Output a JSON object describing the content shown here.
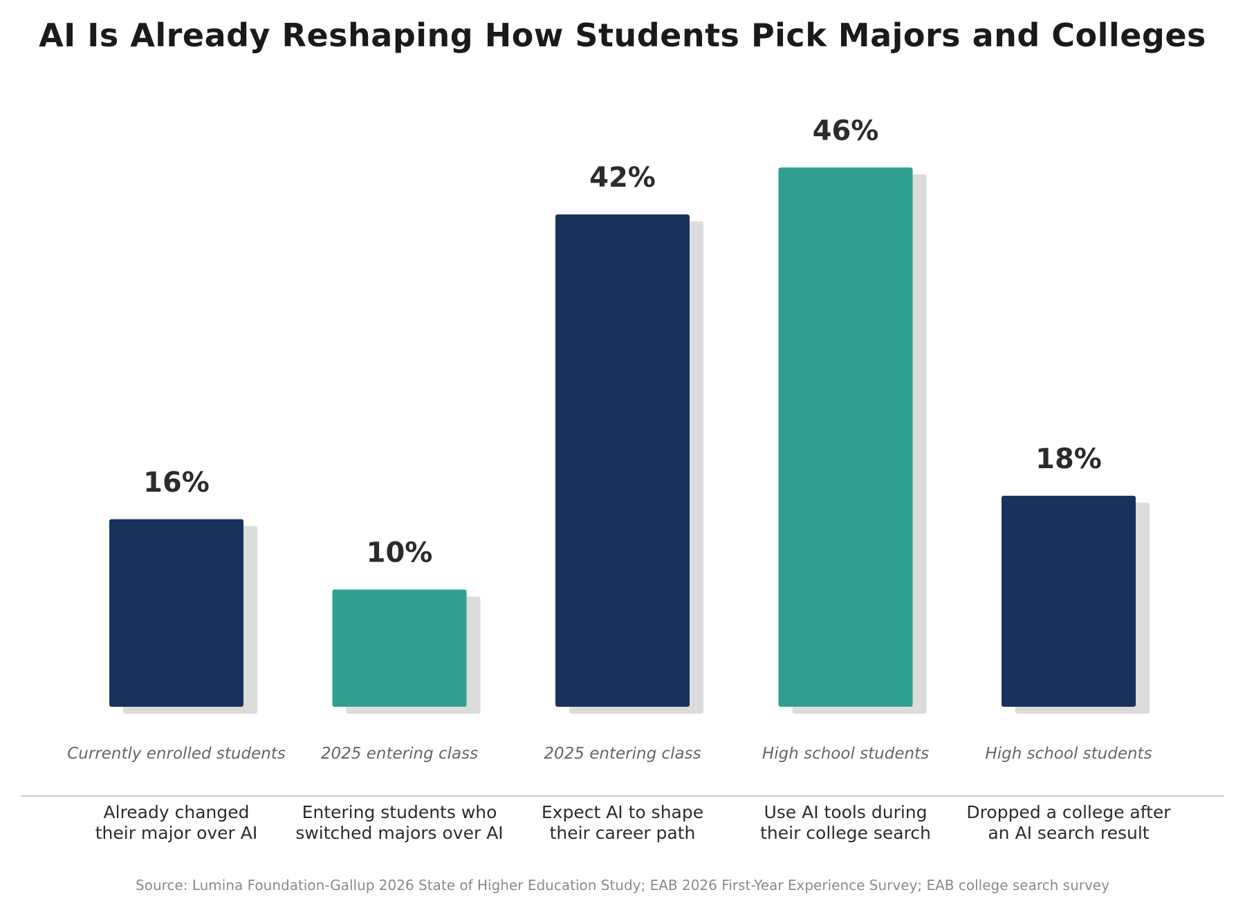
{
  "chart_data": {
    "type": "bar",
    "title": "AI Is Already Reshaping How Students Pick Majors and Colleges",
    "categories": [
      [
        "Already changed",
        "their major over AI"
      ],
      [
        "Entering students who",
        "switched majors over AI"
      ],
      [
        "Expect AI to shape",
        "their career path"
      ],
      [
        "Use AI tools during",
        "their college search"
      ],
      [
        "Dropped a college after",
        "an AI search result"
      ]
    ],
    "groups": [
      "Currently enrolled students",
      "2025 entering class",
      "2025 entering class",
      "High school students",
      "High school students"
    ],
    "values": [
      16,
      10,
      42,
      46,
      18
    ],
    "value_labels": [
      "16%",
      "10%",
      "42%",
      "46%",
      "18%"
    ],
    "unit": "%",
    "bar_colors": [
      "#18325b",
      "#2fa08f",
      "#18325b",
      "#2fa08f",
      "#18325b"
    ],
    "ylim": [
      0,
      50
    ],
    "xlabel": "",
    "ylabel": "",
    "grid": false,
    "legend": "none",
    "source": "Source: Lumina Foundation-Gallup 2026 State of Higher Education Study; EAB 2026 First-Year Experience Survey; EAB college search survey"
  },
  "colors": {
    "navy": "#18325b",
    "teal": "#2fa08f",
    "shadow": "#dcdcdc",
    "baseline": "#cccccc"
  }
}
